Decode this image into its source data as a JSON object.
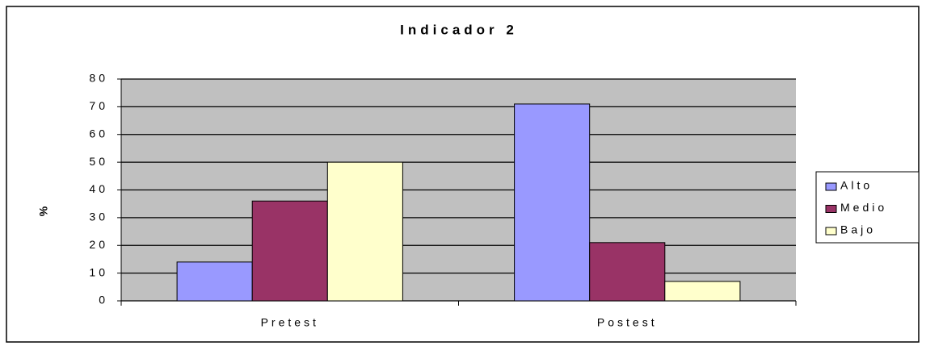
{
  "chart_data": {
    "type": "bar",
    "title": "Indicador 2",
    "y_label": "%",
    "categories": [
      "Pretest",
      "Postest"
    ],
    "series": [
      {
        "name": "Alto",
        "color": "#9999ff",
        "values": [
          14,
          71
        ]
      },
      {
        "name": "Medio",
        "color": "#993366",
        "values": [
          36,
          21
        ]
      },
      {
        "name": "Bajo",
        "color": "#ffffcc",
        "values": [
          50,
          7
        ]
      }
    ],
    "ylim": [
      0,
      80
    ],
    "yticks": [
      0,
      10,
      20,
      30,
      40,
      50,
      60,
      70,
      80
    ],
    "grid": true,
    "legend": "right",
    "plot_background": "#c0c0c0"
  }
}
